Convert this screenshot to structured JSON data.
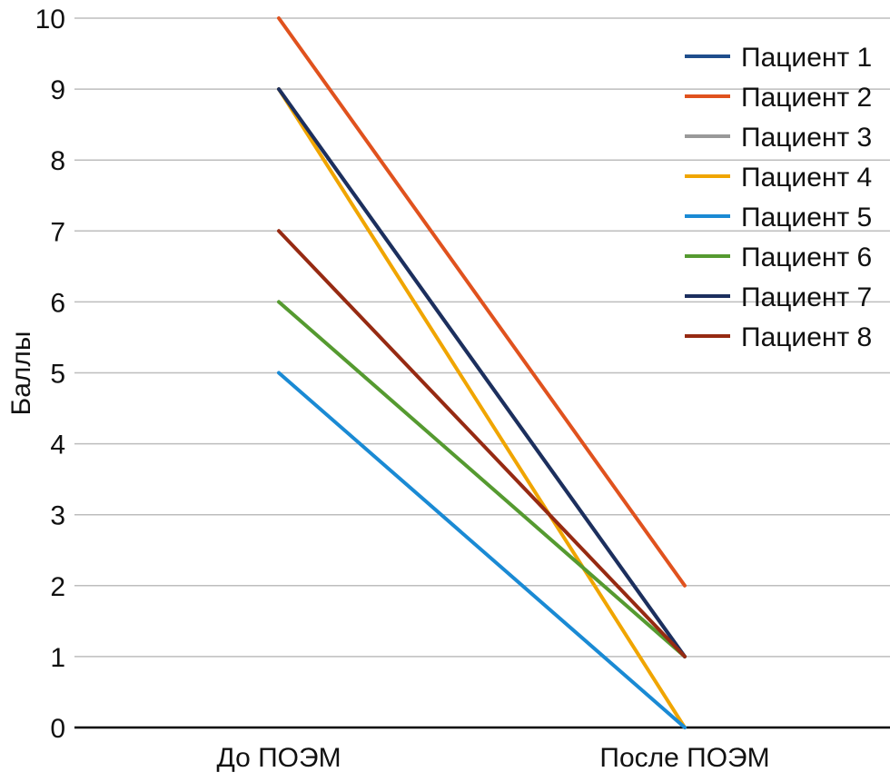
{
  "chart_data": {
    "type": "line",
    "title": "",
    "xlabel": "",
    "ylabel": "Баллы",
    "categories": [
      "До ПОЭМ",
      "После ПОЭМ"
    ],
    "ylim": [
      0,
      10
    ],
    "yticks": [
      "0",
      "1",
      "2",
      "3",
      "4",
      "5",
      "6",
      "7",
      "8",
      "9",
      "10"
    ],
    "grid": true,
    "legend_position": "top-right",
    "series": [
      {
        "name": "Пациент 1",
        "color": "#1f4e8c",
        "values": [
          9,
          1
        ]
      },
      {
        "name": "Пациент 2",
        "color": "#e0521e",
        "values": [
          10,
          2
        ]
      },
      {
        "name": "Пациент 3",
        "color": "#999999",
        "values": [
          9,
          1
        ]
      },
      {
        "name": "Пациент 4",
        "color": "#f0a500",
        "values": [
          9,
          0
        ]
      },
      {
        "name": "Пациент 5",
        "color": "#1a8ad4",
        "values": [
          5,
          0
        ]
      },
      {
        "name": "Пациент 6",
        "color": "#559a30",
        "values": [
          6,
          1
        ]
      },
      {
        "name": "Пациент 7",
        "color": "#1c2f5e",
        "values": [
          9,
          1
        ]
      },
      {
        "name": "Пациент 8",
        "color": "#962a12",
        "values": [
          7,
          1
        ]
      }
    ]
  }
}
